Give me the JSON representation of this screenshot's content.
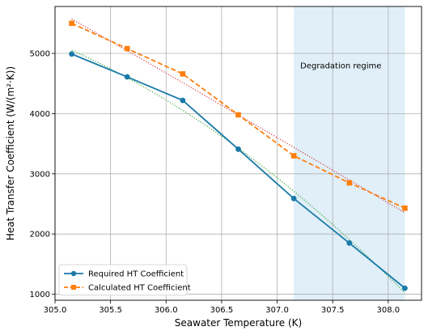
{
  "chart_data": {
    "type": "line",
    "xlabel": "Seawater Temperature (K)",
    "ylabel": "Heat Transfer Coefficient (W/(m²·K))",
    "xlim": [
      305.0,
      308.3
    ],
    "ylim": [
      900,
      5780
    ],
    "xticks": [
      "305.0",
      "305.5",
      "306.0",
      "306.5",
      "307.0",
      "307.5",
      "308.0"
    ],
    "yticks": [
      "1000",
      "2000",
      "3000",
      "4000",
      "5000"
    ],
    "grid": true,
    "legend_position": "lower-left",
    "shaded_region": {
      "x": [
        307.15,
        308.15
      ],
      "label": "Degradation regime"
    },
    "series": [
      {
        "name": "Required HT Coefficient",
        "color": "#1a7aa8",
        "marker": "circle",
        "linestyle": "solid",
        "x": [
          305.15,
          305.65,
          306.15,
          306.65,
          307.15,
          307.65,
          308.15
        ],
        "values": [
          4990,
          4610,
          4220,
          3410,
          2590,
          1850,
          1100
        ],
        "trend_color": "#2ca02c"
      },
      {
        "name": "Calculated HT Coefficient",
        "color": "#ff7f0e",
        "marker": "square",
        "linestyle": "dashed",
        "x": [
          305.15,
          305.65,
          306.15,
          306.65,
          307.15,
          307.65,
          308.15
        ],
        "values": [
          5500,
          5080,
          4660,
          3980,
          3300,
          2850,
          2430
        ],
        "trend_color": "#d62728"
      }
    ]
  }
}
